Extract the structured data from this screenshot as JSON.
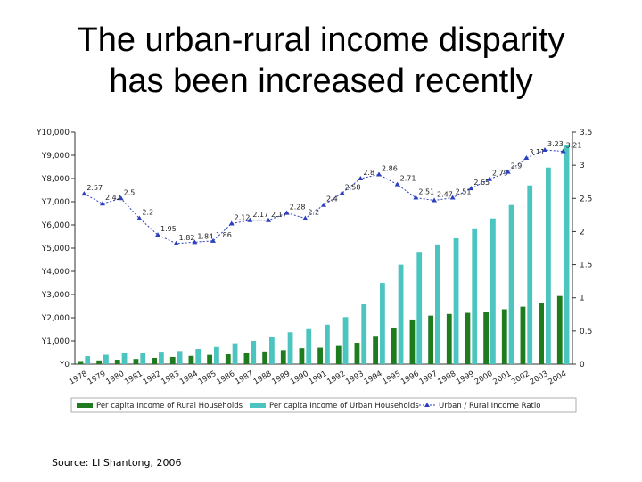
{
  "title": {
    "line1": "The urban-rural income disparity",
    "line2": "has been increased  recently"
  },
  "source": "Source:  LI Shantong, 2006",
  "chart_data": {
    "type": "bar",
    "categories": [
      "1978",
      "1979",
      "1980",
      "1981",
      "1982",
      "1983",
      "1984",
      "1985",
      "1986",
      "1987",
      "1988",
      "1989",
      "1990",
      "1991",
      "1992",
      "1993",
      "1994",
      "1995",
      "1996",
      "1997",
      "1998",
      "1999",
      "2000",
      "2001",
      "2002",
      "2003",
      "2004"
    ],
    "series": [
      {
        "name": "Per capita Income of Rural Households",
        "color": "#1e7b1e",
        "axis": "left",
        "values": [
          134,
          160,
          191,
          223,
          270,
          310,
          355,
          398,
          424,
          463,
          545,
          602,
          686,
          709,
          784,
          922,
          1221,
          1578,
          1926,
          2090,
          2162,
          2210,
          2253,
          2366,
          2476,
          2622,
          2936
        ]
      },
      {
        "name": "Per capita Income of Urban Households",
        "color": "#4cc4c0",
        "axis": "left",
        "values": [
          343,
          405,
          478,
          500,
          535,
          564,
          652,
          739,
          900,
          1002,
          1180,
          1374,
          1510,
          1700,
          2027,
          2577,
          3496,
          4283,
          4839,
          5160,
          5425,
          5854,
          6280,
          6860,
          7703,
          8472,
          9422
        ]
      },
      {
        "name": "Urban / Rural Income Ratio",
        "color": "#2b3fbf",
        "axis": "right",
        "type": "line",
        "values": [
          2.57,
          2.42,
          2.5,
          2.2,
          1.95,
          1.82,
          1.84,
          1.86,
          2.12,
          2.17,
          2.17,
          2.28,
          2.2,
          2.4,
          2.58,
          2.8,
          2.86,
          2.71,
          2.51,
          2.47,
          2.51,
          2.65,
          2.79,
          2.9,
          3.11,
          3.23,
          3.21
        ]
      }
    ],
    "left_axis": {
      "min": 0,
      "max": 10000,
      "ticks": [
        "Y0",
        "Y1,000",
        "Y2,000",
        "Y3,000",
        "Y4,000",
        "Y5,000",
        "Y6,000",
        "Y7,000",
        "Y8,000",
        "Y9,000",
        "Y10,000"
      ]
    },
    "right_axis": {
      "min": 0,
      "max": 3.5,
      "ticks": [
        "0",
        "0.5",
        "1",
        "1.5",
        "2",
        "2.5",
        "3",
        "3.5"
      ]
    },
    "point_labels": [
      "2.57",
      "2.42",
      "2.5",
      "2.2",
      "1.95",
      "1.82",
      "1.84",
      "1.86",
      "2.12",
      "2.17",
      "2.17",
      "2.28",
      "2.2",
      "2.4",
      "2.58",
      "2.8",
      "2.86",
      "2.71",
      "2.51",
      "2.47",
      "2.51",
      "2.65",
      "2.79",
      "2.9",
      "3.11",
      "3.23",
      "3.21"
    ],
    "legend": [
      "Per capita Income of Rural Households",
      "Per capita Income of Urban Households",
      "Urban / Rural Income Ratio"
    ],
    "legend_position": "bottom",
    "grid": false
  }
}
